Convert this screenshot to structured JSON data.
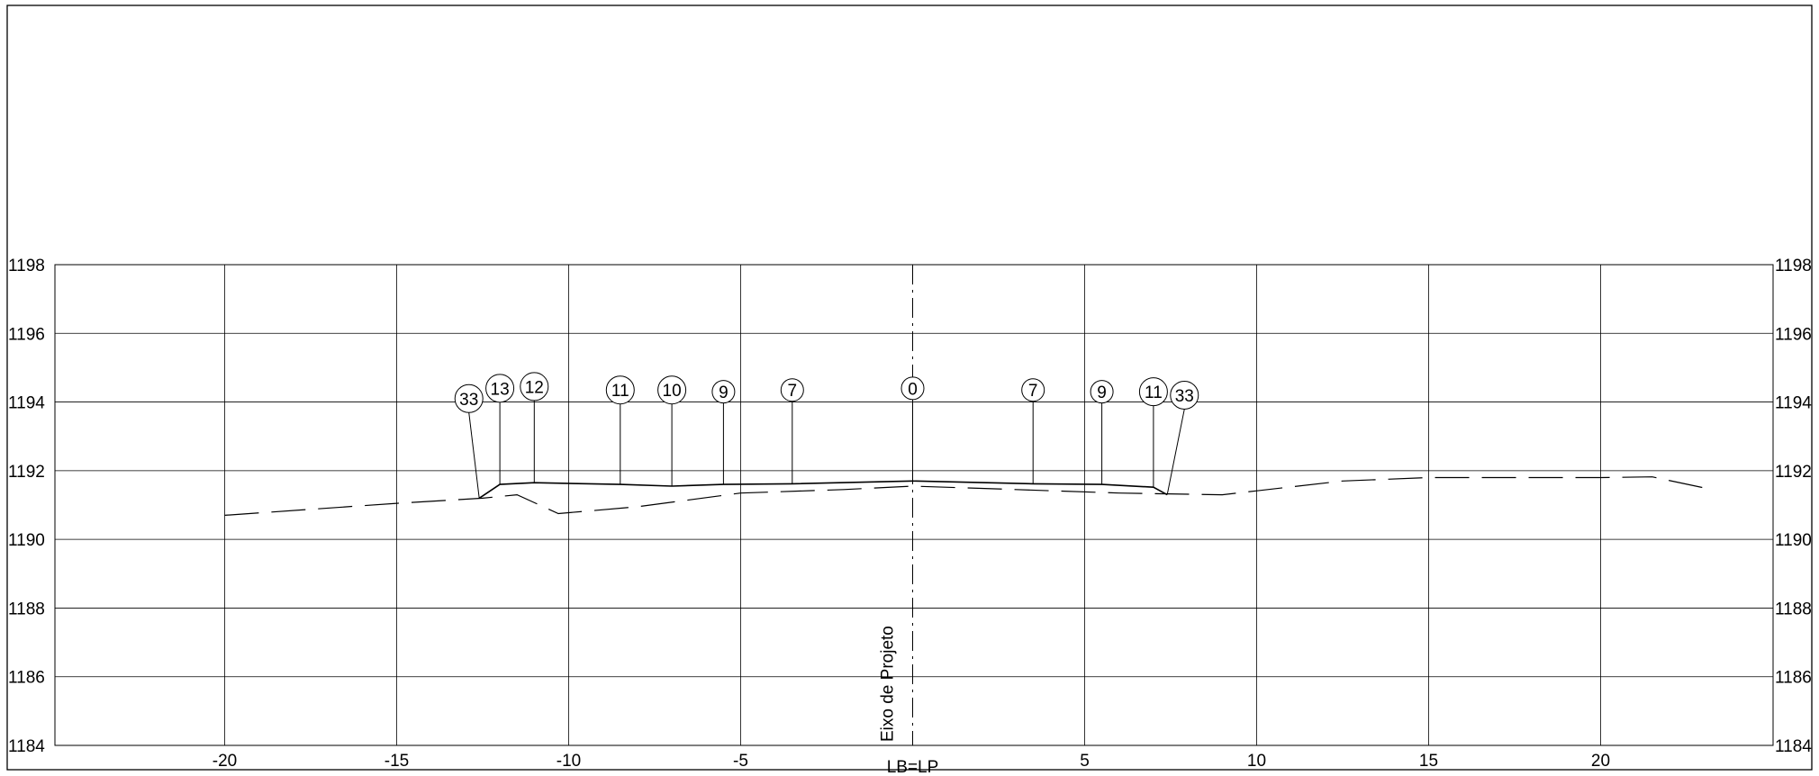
{
  "chart_data": {
    "type": "cross-section",
    "x_axis": {
      "range": [
        -26.5,
        25
      ],
      "ticks": [
        -20,
        -15,
        -10,
        -5,
        0,
        5,
        10,
        15,
        20
      ],
      "tick_labels": [
        "-20",
        "-15",
        "-10",
        "-5",
        "",
        "5",
        "10",
        "15",
        "20"
      ],
      "center_label": "LB=LP"
    },
    "y_axis": {
      "range": [
        1184,
        1198
      ],
      "ticks": [
        1184,
        1186,
        1188,
        1190,
        1192,
        1194,
        1196,
        1198
      ],
      "tick_labels": [
        "1184",
        "1186",
        "1188",
        "1190",
        "1192",
        "1194",
        "1196",
        "1198"
      ]
    },
    "grid": true,
    "axis_line_label": "Eixo de Projeto",
    "terrain_dashed": [
      {
        "x": -20,
        "y": 1190.7
      },
      {
        "x": -15,
        "y": 1191.05
      },
      {
        "x": -12.5,
        "y": 1191.2
      },
      {
        "x": -11.5,
        "y": 1191.3
      },
      {
        "x": -10.3,
        "y": 1190.75
      },
      {
        "x": -8,
        "y": 1190.95
      },
      {
        "x": -5,
        "y": 1191.35
      },
      {
        "x": -2,
        "y": 1191.45
      },
      {
        "x": 0,
        "y": 1191.55
      },
      {
        "x": 3,
        "y": 1191.45
      },
      {
        "x": 6,
        "y": 1191.35
      },
      {
        "x": 9,
        "y": 1191.3
      },
      {
        "x": 12.5,
        "y": 1191.7
      },
      {
        "x": 15,
        "y": 1191.8
      },
      {
        "x": 20,
        "y": 1191.8
      },
      {
        "x": 21.5,
        "y": 1191.82
      },
      {
        "x": 23,
        "y": 1191.5
      }
    ],
    "design_profile": [
      {
        "x": -12.6,
        "y": 1191.2
      },
      {
        "x": -12.0,
        "y": 1191.6
      },
      {
        "x": -11.0,
        "y": 1191.65
      },
      {
        "x": -8.5,
        "y": 1191.6
      },
      {
        "x": -7.0,
        "y": 1191.55
      },
      {
        "x": -5.5,
        "y": 1191.6
      },
      {
        "x": -3.5,
        "y": 1191.62
      },
      {
        "x": 0,
        "y": 1191.7
      },
      {
        "x": 3.5,
        "y": 1191.62
      },
      {
        "x": 5.5,
        "y": 1191.6
      },
      {
        "x": 7.0,
        "y": 1191.52
      },
      {
        "x": 7.4,
        "y": 1191.3
      }
    ],
    "markers": [
      {
        "label": "33",
        "x": -12.6,
        "y": 1191.2,
        "lx": -12.9,
        "ly": 1194.1
      },
      {
        "label": "13",
        "x": -12.0,
        "y": 1191.6,
        "lx": -12.0,
        "ly": 1194.4
      },
      {
        "label": "12",
        "x": -11.0,
        "y": 1191.65,
        "lx": -11.0,
        "ly": 1194.45
      },
      {
        "label": "11",
        "x": -8.5,
        "y": 1191.6,
        "lx": -8.5,
        "ly": 1194.35
      },
      {
        "label": "10",
        "x": -7.0,
        "y": 1191.55,
        "lx": -7.0,
        "ly": 1194.35
      },
      {
        "label": "9",
        "x": -5.5,
        "y": 1191.6,
        "lx": -5.5,
        "ly": 1194.3
      },
      {
        "label": "7",
        "x": -3.5,
        "y": 1191.62,
        "lx": -3.5,
        "ly": 1194.35
      },
      {
        "label": "0",
        "x": 0,
        "y": 1191.7,
        "lx": 0,
        "ly": 1194.4
      },
      {
        "label": "7",
        "x": 3.5,
        "y": 1191.62,
        "lx": 3.5,
        "ly": 1194.35
      },
      {
        "label": "9",
        "x": 5.5,
        "y": 1191.6,
        "lx": 5.5,
        "ly": 1194.3
      },
      {
        "label": "11",
        "x": 7.0,
        "y": 1191.52,
        "lx": 7.0,
        "ly": 1194.3
      },
      {
        "label": "33",
        "x": 7.4,
        "y": 1191.3,
        "lx": 7.9,
        "ly": 1194.2
      }
    ]
  }
}
